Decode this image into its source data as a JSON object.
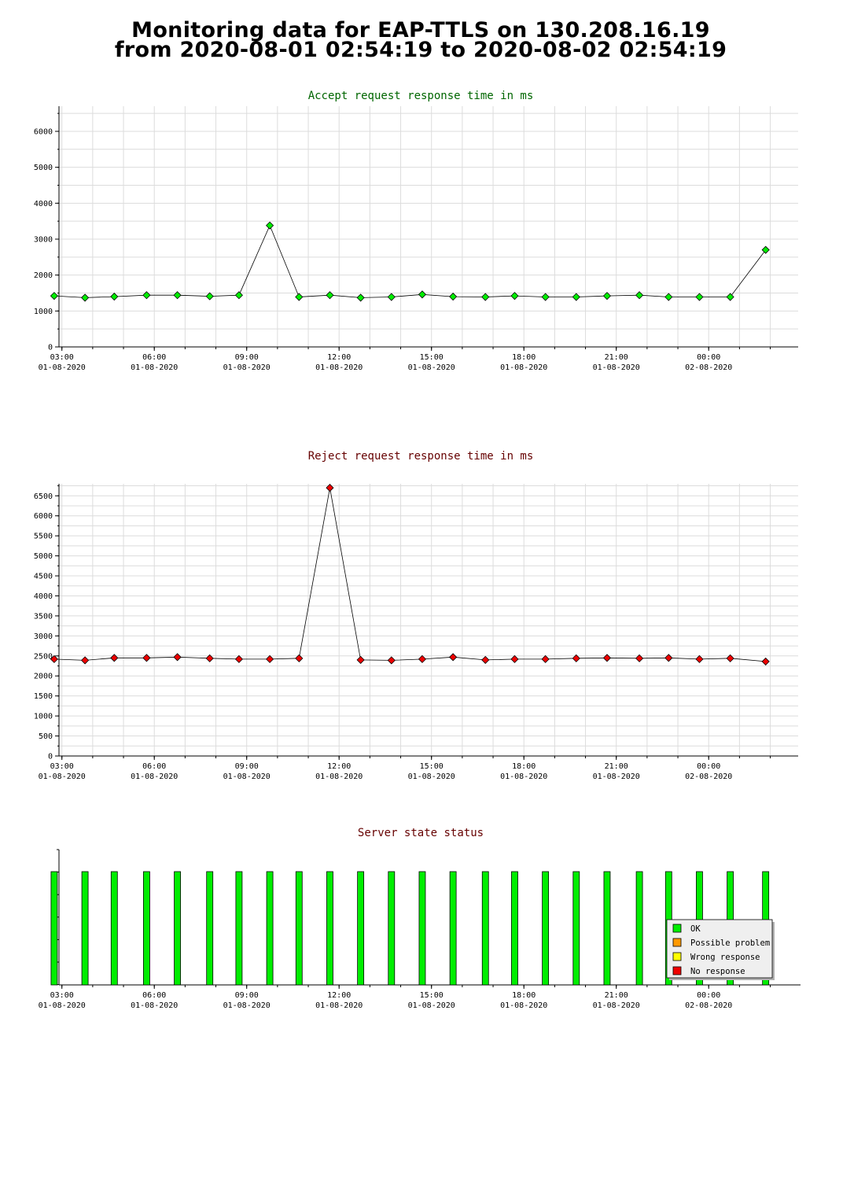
{
  "header": {
    "line1": "Monitoring data for EAP-TTLS on 130.208.16.19",
    "line2": "from 2020-08-01 02:54:19 to 2020-08-02 02:54:19"
  },
  "x_axis": {
    "ticks": [
      {
        "time": "03:00",
        "date": "01-08-2020"
      },
      {
        "time": "06:00",
        "date": "01-08-2020"
      },
      {
        "time": "09:00",
        "date": "01-08-2020"
      },
      {
        "time": "12:00",
        "date": "01-08-2020"
      },
      {
        "time": "15:00",
        "date": "01-08-2020"
      },
      {
        "time": "18:00",
        "date": "01-08-2020"
      },
      {
        "time": "21:00",
        "date": "01-08-2020"
      },
      {
        "time": "00:00",
        "date": "02-08-2020"
      }
    ]
  },
  "chart_data": [
    {
      "type": "line",
      "title": "Accept request response time in ms",
      "color": "#00ee00",
      "title_color": "#006600",
      "x_hours_after_midnight_01_08": [
        2.75,
        3.75,
        4.7,
        5.75,
        6.75,
        7.8,
        8.75,
        9.75,
        10.7,
        11.7,
        12.7,
        13.7,
        14.7,
        15.7,
        16.75,
        17.7,
        18.7,
        19.7,
        20.7,
        21.75,
        22.7,
        23.7,
        24.7,
        25.85
      ],
      "values": [
        1420,
        1370,
        1400,
        1440,
        1440,
        1410,
        1440,
        3380,
        1390,
        1440,
        1370,
        1390,
        1460,
        1400,
        1390,
        1420,
        1390,
        1390,
        1420,
        1440,
        1390,
        1390,
        1390,
        2700
      ],
      "yticks": [
        0,
        1000,
        2000,
        3000,
        4000,
        5000,
        6000
      ],
      "ylim": [
        0,
        6700
      ]
    },
    {
      "type": "line",
      "title": "Reject request response time in ms",
      "color": "#ee0000",
      "title_color": "#660000",
      "x_hours_after_midnight_01_08": [
        2.75,
        3.75,
        4.7,
        5.75,
        6.75,
        7.8,
        8.75,
        9.75,
        10.7,
        11.7,
        12.7,
        13.7,
        14.7,
        15.7,
        16.75,
        17.7,
        18.7,
        19.7,
        20.7,
        21.75,
        22.7,
        23.7,
        24.7,
        25.85
      ],
      "values": [
        2420,
        2390,
        2450,
        2450,
        2470,
        2440,
        2420,
        2420,
        2440,
        6700,
        2400,
        2390,
        2420,
        2470,
        2400,
        2420,
        2420,
        2440,
        2450,
        2440,
        2450,
        2420,
        2440,
        2360
      ],
      "yticks": [
        0,
        500,
        1000,
        1500,
        2000,
        2500,
        3000,
        3500,
        4000,
        4500,
        5000,
        5500,
        6000,
        6500
      ],
      "ylim": [
        0,
        6800
      ]
    },
    {
      "type": "bar",
      "title": "Server state status",
      "title_color": "#660000",
      "x_hours_after_midnight_01_08": [
        2.75,
        3.75,
        4.7,
        5.75,
        6.75,
        7.8,
        8.75,
        9.75,
        10.7,
        11.7,
        12.7,
        13.7,
        14.7,
        15.7,
        16.75,
        17.7,
        18.7,
        19.7,
        20.7,
        21.75,
        22.7,
        23.7,
        24.7,
        25.85
      ],
      "states": [
        "OK",
        "OK",
        "OK",
        "OK",
        "OK",
        "OK",
        "OK",
        "OK",
        "OK",
        "OK",
        "OK",
        "OK",
        "OK",
        "OK",
        "OK",
        "OK",
        "OK",
        "OK",
        "OK",
        "OK",
        "OK",
        "OK",
        "OK",
        "OK"
      ],
      "legend": [
        {
          "label": "OK",
          "color": "#00ee00"
        },
        {
          "label": "Possible problem",
          "color": "#ff9900"
        },
        {
          "label": "Wrong response",
          "color": "#ffff00"
        },
        {
          "label": "No response",
          "color": "#ee0000"
        }
      ],
      "legend_position": "bottom-right"
    }
  ]
}
